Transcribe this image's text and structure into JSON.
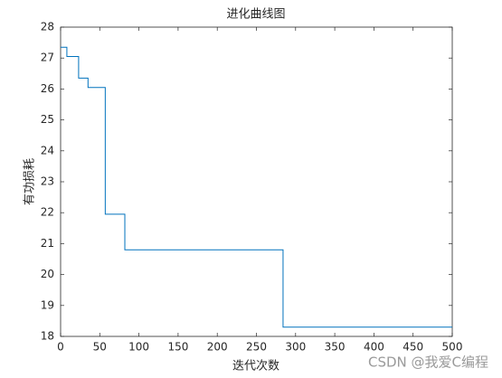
{
  "chart_data": {
    "type": "line",
    "title": "进化曲线图",
    "x_label": "迭代次数",
    "y_label": "有功损耗",
    "x": [
      0,
      8,
      8,
      23,
      23,
      35,
      35,
      57,
      57,
      82,
      82,
      284,
      284,
      500
    ],
    "series": [
      {
        "color": "#0072bd",
        "values": [
          27.35,
          27.35,
          27.05,
          27.05,
          26.35,
          26.35,
          26.05,
          26.05,
          21.95,
          21.95,
          20.8,
          20.8,
          18.3,
          18.3
        ]
      }
    ],
    "xlim": [
      0,
      500
    ],
    "xticks": [
      0,
      50,
      100,
      150,
      200,
      250,
      300,
      350,
      400,
      450,
      500
    ],
    "ylim": [
      18,
      28
    ],
    "yticks": [
      18,
      19,
      20,
      21,
      22,
      23,
      24,
      25,
      26,
      27,
      28
    ],
    "grid": false,
    "watermark": "CSDN @我爱C编程"
  }
}
